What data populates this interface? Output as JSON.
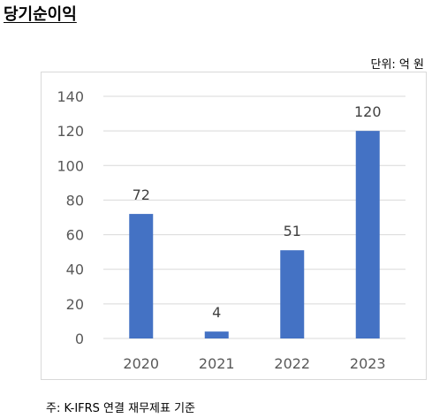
{
  "page": {
    "title": "당기순이익",
    "unit": "단위: 억 원",
    "footnote": "주: K-IFRS 연결 재무제표 기준"
  },
  "colors": {
    "bar": "#4472c4",
    "grid": "#d9d9d9",
    "axis_text": "#595959"
  },
  "chart_data": {
    "type": "bar",
    "categories": [
      "2020",
      "2021",
      "2022",
      "2023"
    ],
    "values": [
      72,
      4,
      51,
      120
    ],
    "data_labels": [
      "72",
      "4",
      "51",
      "120"
    ],
    "yticks": [
      "0",
      "20",
      "40",
      "60",
      "80",
      "100",
      "120",
      "140"
    ],
    "ylim": [
      0,
      140
    ],
    "grid": true,
    "legend": "none"
  }
}
